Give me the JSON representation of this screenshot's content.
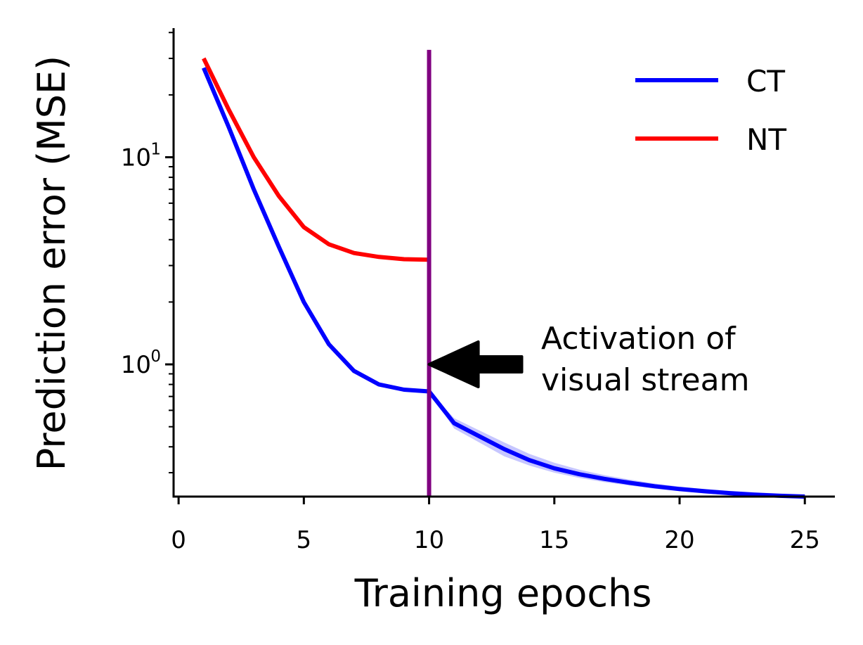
{
  "chart_data": {
    "type": "line",
    "xlabel": "Training epochs",
    "ylabel": "Prediction error (MSE)",
    "xlim": [
      -0.2,
      26.2
    ],
    "ylim": [
      0.23,
      42
    ],
    "yscale": "log",
    "xticks": [
      0,
      5,
      10,
      15,
      20,
      25
    ],
    "xtick_labels": [
      "0",
      "5",
      "10",
      "15",
      "20",
      "25"
    ],
    "yticks_major": [
      {
        "value": 1,
        "base": "10",
        "exp": "0"
      },
      {
        "value": 10,
        "base": "10",
        "exp": "1"
      }
    ],
    "yticks_minor": [
      0.3,
      0.4,
      0.5,
      0.6,
      0.7,
      0.8,
      0.9,
      2,
      3,
      4,
      5,
      6,
      7,
      8,
      9,
      20,
      30,
      40
    ],
    "grid": false,
    "legend_position": "top-right",
    "series": [
      {
        "name": "CT",
        "color": "#0000ff",
        "x": [
          1,
          2,
          3,
          4,
          5,
          6,
          7,
          8,
          9,
          10,
          11,
          12,
          13,
          14,
          15,
          16,
          17,
          18,
          19,
          20,
          21,
          22,
          23,
          24,
          25
        ],
        "y": [
          27,
          14,
          7,
          3.7,
          2.0,
          1.25,
          0.93,
          0.8,
          0.755,
          0.74,
          0.52,
          0.45,
          0.39,
          0.345,
          0.315,
          0.295,
          0.28,
          0.268,
          0.258,
          0.25,
          0.244,
          0.239,
          0.235,
          0.232,
          0.23
        ],
        "band_lower": [
          27,
          14,
          7,
          3.7,
          2.0,
          1.25,
          0.93,
          0.8,
          0.755,
          0.74,
          0.49,
          0.42,
          0.36,
          0.325,
          0.3,
          0.283,
          0.27,
          0.26,
          0.251,
          0.244,
          0.238,
          0.234,
          0.23,
          0.227,
          0.225
        ],
        "band_upper": [
          27,
          14,
          7,
          3.7,
          2.0,
          1.25,
          0.93,
          0.8,
          0.755,
          0.74,
          0.55,
          0.48,
          0.42,
          0.37,
          0.335,
          0.31,
          0.292,
          0.278,
          0.266,
          0.257,
          0.25,
          0.245,
          0.241,
          0.238,
          0.236
        ],
        "band_color": "#8080ff"
      },
      {
        "name": "NT",
        "color": "#ff0000",
        "x": [
          1,
          2,
          3,
          4,
          5,
          6,
          7,
          8,
          9,
          10
        ],
        "y": [
          30,
          17,
          10,
          6.5,
          4.6,
          3.8,
          3.45,
          3.3,
          3.22,
          3.2
        ]
      }
    ],
    "vline": {
      "x": 10,
      "color": "#800080",
      "y_top": 33
    },
    "annotation": {
      "lines": [
        "Activation of",
        "visual stream"
      ],
      "arrow_tip": {
        "x": 10,
        "y": 1.0
      },
      "arrow_tail": {
        "x": 13.7,
        "y": 1.0
      },
      "arrow_color": "#000000"
    }
  }
}
